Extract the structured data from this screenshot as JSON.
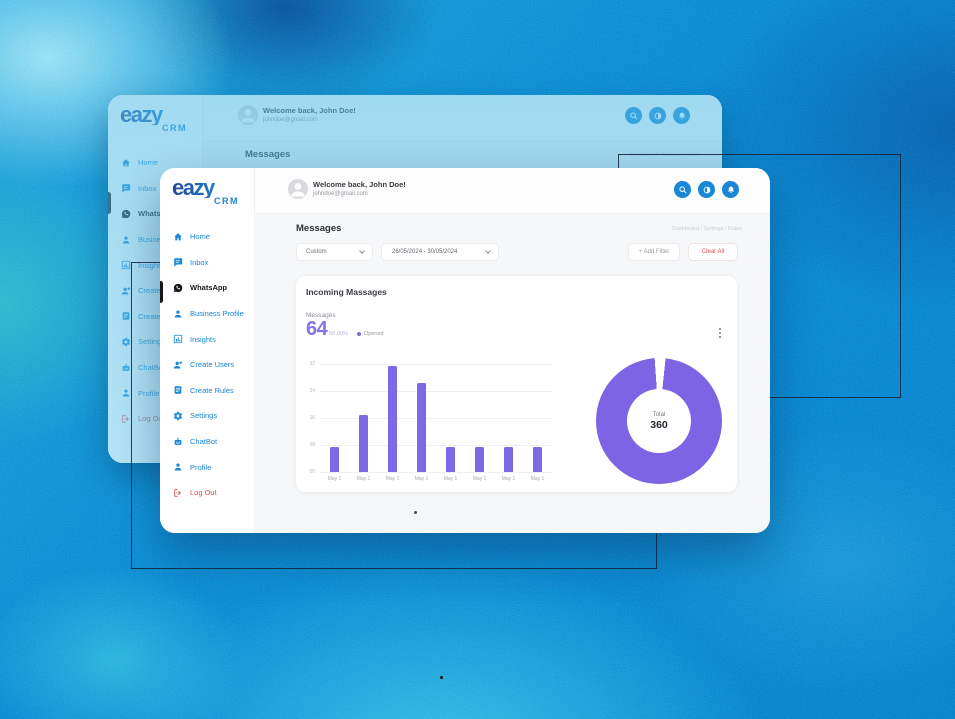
{
  "app": {
    "logo": {
      "word": "eazy",
      "sub": "CRM"
    },
    "header": {
      "welcome": "Welcome back, John Doe!",
      "email": "johndoe@gmail.com",
      "icons": [
        "search",
        "theme-toggle",
        "notifications"
      ]
    },
    "page_title": "Messages",
    "breadcrumb": "Dashboard  /  Settings  /  Rules",
    "filters": {
      "range_type": "Custom",
      "date_range": "26/05/2024  -  30/05/2024",
      "add_filter": "+ Add Filter",
      "clear_all": "Clear All"
    },
    "sidebar": {
      "items": [
        {
          "label": "Home",
          "icon": "home"
        },
        {
          "label": "Inbox",
          "icon": "inbox"
        },
        {
          "label": "WhatsApp",
          "icon": "whatsapp",
          "active": true
        },
        {
          "label": "Business Profile",
          "icon": "business-profile"
        },
        {
          "label": "Insights",
          "icon": "insights"
        },
        {
          "label": "Create Users",
          "icon": "create-users"
        },
        {
          "label": "Create Rules",
          "icon": "create-rules"
        },
        {
          "label": "Settings",
          "icon": "settings"
        },
        {
          "label": "ChatBot",
          "icon": "chatbot"
        },
        {
          "label": "Profile",
          "icon": "profile"
        },
        {
          "label": "Log Out",
          "icon": "logout",
          "danger": true
        }
      ]
    },
    "card": {
      "title": "Incoming Massages",
      "metric_label": "Messages",
      "metric_value": "64",
      "metric_percent": "50.00%",
      "legend_label": "Opened"
    }
  },
  "chart_data": [
    {
      "type": "bar",
      "title": "Incoming Massages",
      "categories": [
        "May 1",
        "May 1",
        "May 1",
        "May 1",
        "May 1",
        "May 1",
        "May 1",
        "May 1"
      ],
      "values": [
        7.5,
        17,
        31.5,
        26.5,
        7.3,
        7.3,
        7.3,
        7.3
      ],
      "ylim": [
        0,
        32
      ],
      "ytick_labels_top_to_bottom": [
        "32",
        "24",
        "16",
        "08",
        "00"
      ],
      "bar_color": "#7d68e6",
      "grid": true,
      "legend": [
        "Opened"
      ],
      "legend_position": "top"
    },
    {
      "type": "donut",
      "center_label": "Total",
      "center_value": "360",
      "segments": [
        {
          "label": "Opened",
          "value": 350,
          "color": "#7c64e4"
        },
        {
          "label": "Gap",
          "value": 10,
          "color": "#ffffff"
        }
      ],
      "start_angle_deg": 6
    }
  ],
  "colors": {
    "accent_blue": "#1787d6",
    "purple": "#7d68e6",
    "danger_red": "#e8484b",
    "active_black": "#15171c"
  }
}
